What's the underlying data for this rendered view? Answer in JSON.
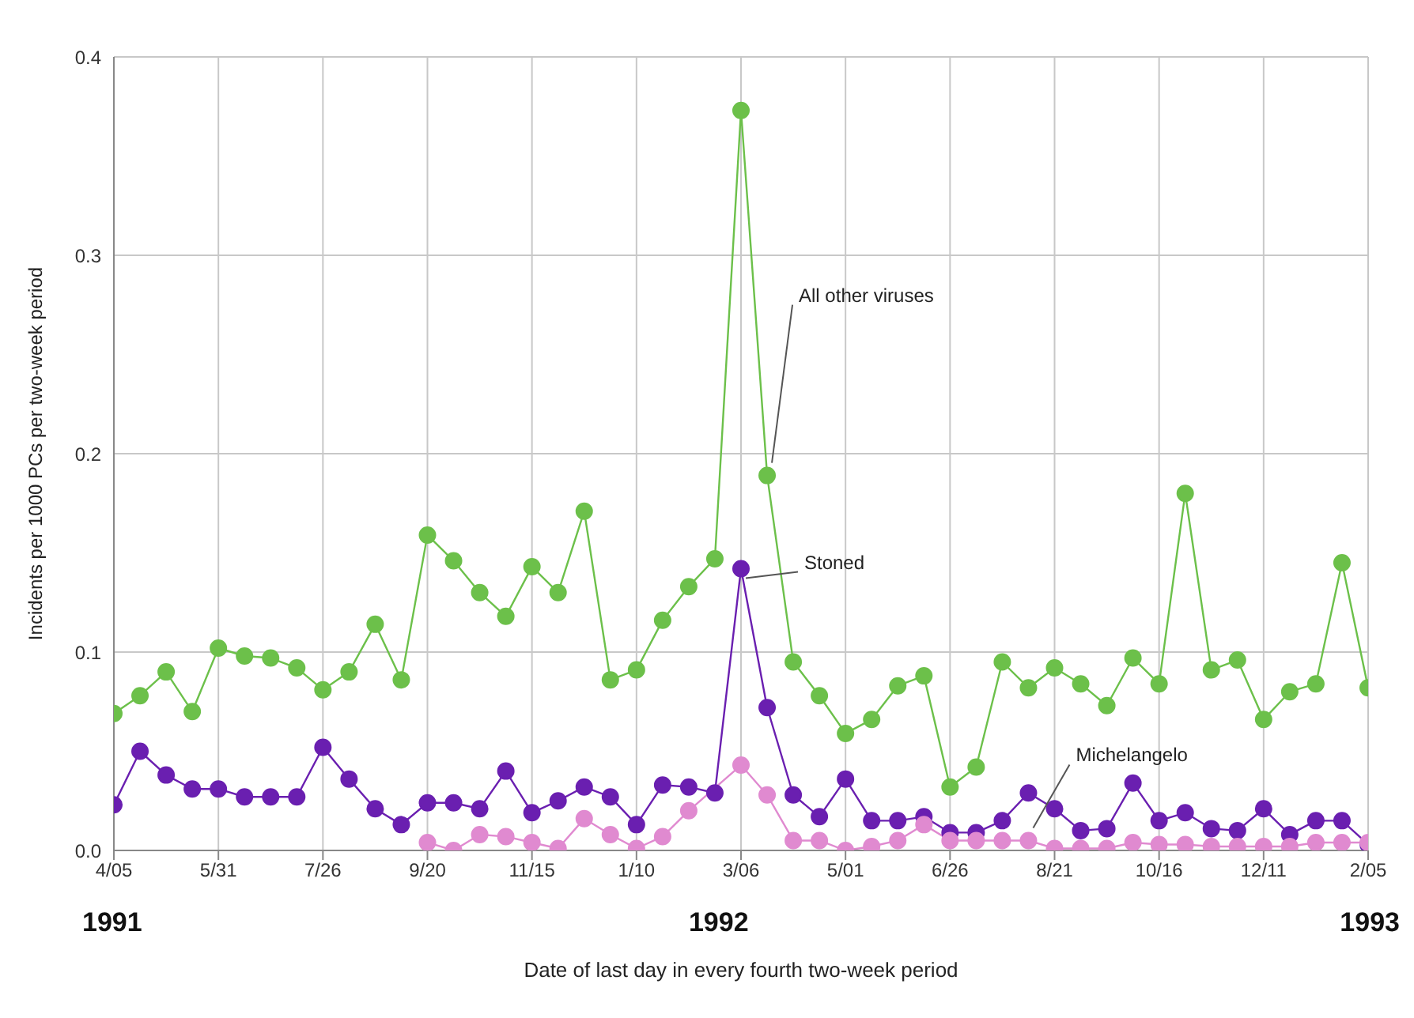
{
  "chart_data": {
    "type": "line",
    "ylabel": "Incidents per 1000 PCs per two-week period",
    "xlabel": "Date of last day in every fourth two-week period",
    "categories": [
      "4/05",
      null,
      null,
      null,
      "5/31",
      null,
      null,
      null,
      "7/26",
      null,
      null,
      null,
      "9/20",
      null,
      null,
      null,
      "11/15",
      null,
      null,
      null,
      "1/10",
      null,
      null,
      null,
      "3/06",
      null,
      null,
      null,
      "5/01",
      null,
      null,
      null,
      "6/26",
      null,
      null,
      null,
      "8/21",
      null,
      null,
      null,
      "10/16",
      null,
      null,
      null,
      "12/11",
      null,
      null,
      null,
      "2/05"
    ],
    "series": [
      {
        "name": "All other viruses",
        "color": "#6cc04a",
        "values": [
          0.069,
          0.078,
          0.09,
          0.07,
          0.102,
          0.098,
          0.097,
          0.092,
          0.081,
          0.09,
          0.114,
          0.086,
          0.159,
          0.146,
          0.13,
          0.118,
          0.143,
          0.13,
          0.171,
          0.086,
          0.091,
          0.116,
          0.133,
          0.147,
          0.373,
          0.189,
          0.095,
          0.078,
          0.059,
          0.066,
          0.083,
          0.088,
          0.032,
          0.042,
          0.095,
          0.082,
          0.092,
          0.084,
          0.073,
          0.097,
          0.084,
          0.18,
          0.091,
          0.096,
          0.066,
          0.08,
          0.084,
          0.145,
          0.082
        ]
      },
      {
        "name": "Stoned",
        "color": "#6a1fb0",
        "values": [
          0.023,
          0.05,
          0.038,
          0.031,
          0.031,
          0.027,
          0.027,
          0.027,
          0.052,
          0.036,
          0.021,
          0.013,
          0.024,
          0.024,
          0.021,
          0.04,
          0.019,
          0.025,
          0.032,
          0.027,
          0.013,
          0.033,
          0.032,
          0.029,
          0.142,
          0.072,
          0.028,
          0.017,
          0.036,
          0.015,
          0.015,
          0.017,
          0.009,
          0.009,
          0.015,
          0.029,
          0.021,
          0.01,
          0.011,
          0.034,
          0.015,
          0.019,
          0.011,
          0.01,
          0.021,
          0.008,
          0.015,
          0.015,
          0.003
        ]
      },
      {
        "name": "Michelangelo",
        "color": "#e08ad0",
        "values": [
          null,
          null,
          null,
          null,
          null,
          null,
          null,
          null,
          null,
          null,
          null,
          null,
          0.004,
          0.0,
          0.008,
          0.007,
          0.004,
          0.001,
          0.016,
          0.008,
          0.001,
          0.007,
          0.02,
          null,
          0.043,
          0.028,
          0.005,
          0.005,
          0.0,
          0.002,
          0.005,
          0.013,
          0.005,
          0.005,
          0.005,
          0.005,
          0.001,
          0.001,
          0.001,
          0.004,
          0.003,
          0.003,
          0.002,
          0.002,
          0.002,
          0.002,
          0.004,
          0.004,
          0.004
        ]
      }
    ],
    "ylim": [
      0,
      0.4
    ],
    "yticks": [
      {
        "value": 0,
        "label": "0.0"
      },
      {
        "value": 0.1,
        "label": "0.1"
      },
      {
        "value": 0.2,
        "label": "0.2"
      },
      {
        "value": 0.3,
        "label": "0.3"
      },
      {
        "value": 0.4,
        "label": "0.4"
      }
    ],
    "grid": true,
    "marker": "circle",
    "line_style": "solid",
    "annotations": [
      "1991",
      "1992",
      "1993"
    ]
  }
}
